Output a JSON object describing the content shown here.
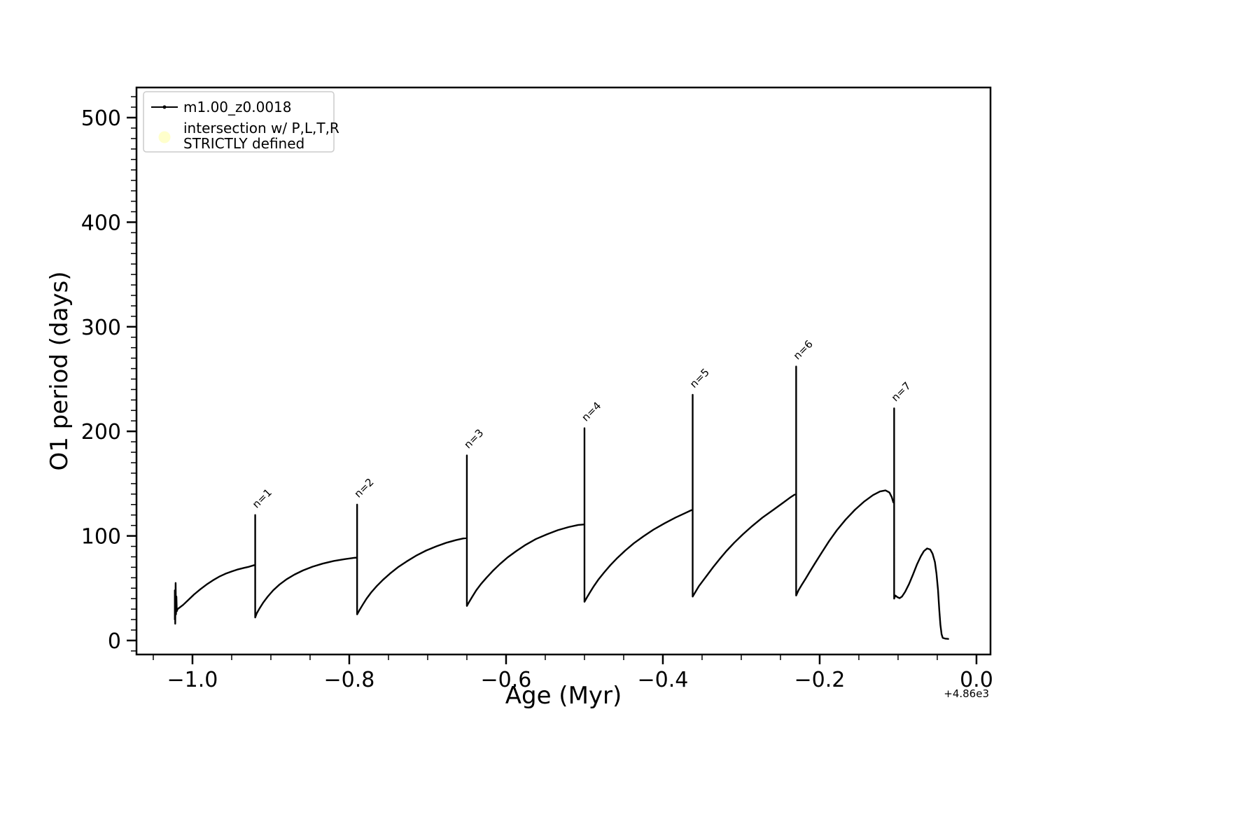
{
  "chart_data": {
    "type": "line",
    "title": "",
    "xlabel": "Age (Myr)",
    "ylabel": "O1 period (days)",
    "x_offset_text": "+4.86e3",
    "xlim": [
      -1.0714,
      0.0179
    ],
    "ylim": [
      -13.4,
      528.8
    ],
    "grid": false,
    "x_major_ticks": [
      -1.0,
      -0.8,
      -0.6,
      -0.4,
      -0.2,
      0.0
    ],
    "x_tick_labels": [
      "−1.0",
      "−0.8",
      "−0.6",
      "−0.4",
      "−0.2",
      "0.0"
    ],
    "x_minor_step": 0.05,
    "y_major_ticks": [
      0,
      100,
      200,
      300,
      400,
      500
    ],
    "y_tick_labels": [
      "0",
      "100",
      "200",
      "300",
      "400",
      "500"
    ],
    "y_minor_step": 10,
    "legend": {
      "position": "upper left",
      "entries": [
        {
          "label": "m1.00_z0.0018",
          "marker": "line-dot",
          "color": "#000000"
        },
        {
          "label_lines": [
            "intersection w/ P,L,T,R",
            "STRICTLY defined"
          ],
          "marker": "circle",
          "color": "#ffffcc"
        }
      ]
    },
    "annotations": [
      {
        "text": "n=1",
        "x": -0.918,
        "y": 126,
        "rotation": -45
      },
      {
        "text": "n=2",
        "x": -0.788,
        "y": 136,
        "rotation": -45
      },
      {
        "text": "n=3",
        "x": -0.648,
        "y": 183,
        "rotation": -45
      },
      {
        "text": "n=4",
        "x": -0.498,
        "y": 209,
        "rotation": -45
      },
      {
        "text": "n=5",
        "x": -0.36,
        "y": 241,
        "rotation": -45
      },
      {
        "text": "n=6",
        "x": -0.228,
        "y": 268,
        "rotation": -45
      },
      {
        "text": "n=7",
        "x": -0.103,
        "y": 228,
        "rotation": -45
      }
    ],
    "series": [
      {
        "name": "m1.00_z0.0018",
        "color": "#000000",
        "linewidth": 2.4,
        "points": [
          [
            -1.0225,
            20
          ],
          [
            -1.0225,
            48
          ],
          [
            -1.022,
            16
          ],
          [
            -1.0215,
            55
          ],
          [
            -1.021,
            25
          ],
          [
            -1.0205,
            42
          ],
          [
            -1.02,
            28
          ],
          [
            -1.019,
            30
          ],
          [
            -1.012,
            34
          ],
          [
            -1.005,
            39
          ],
          [
            -0.998,
            44
          ],
          [
            -0.99,
            49
          ],
          [
            -0.982,
            53.5
          ],
          [
            -0.974,
            57.5
          ],
          [
            -0.966,
            61
          ],
          [
            -0.958,
            63.8
          ],
          [
            -0.95,
            66
          ],
          [
            -0.942,
            68
          ],
          [
            -0.934,
            69.5
          ],
          [
            -0.928,
            70.5
          ],
          [
            -0.9215,
            72
          ],
          [
            -0.92,
            72
          ],
          [
            -0.92,
            120
          ],
          [
            -0.92,
            22
          ],
          [
            -0.918,
            26
          ],
          [
            -0.915,
            30
          ],
          [
            -0.91,
            36
          ],
          [
            -0.904,
            42
          ],
          [
            -0.897,
            48
          ],
          [
            -0.889,
            53.5
          ],
          [
            -0.88,
            58.5
          ],
          [
            -0.87,
            63
          ],
          [
            -0.859,
            67
          ],
          [
            -0.847,
            70.5
          ],
          [
            -0.834,
            73.5
          ],
          [
            -0.82,
            76
          ],
          [
            -0.806,
            77.8
          ],
          [
            -0.794,
            79
          ],
          [
            -0.79,
            79.3
          ],
          [
            -0.79,
            130
          ],
          [
            -0.79,
            25
          ],
          [
            -0.787,
            29
          ],
          [
            -0.783,
            34
          ],
          [
            -0.778,
            40
          ],
          [
            -0.772,
            46
          ],
          [
            -0.765,
            52
          ],
          [
            -0.757,
            58
          ],
          [
            -0.748,
            64
          ],
          [
            -0.738,
            70
          ],
          [
            -0.727,
            75.5
          ],
          [
            -0.715,
            81
          ],
          [
            -0.702,
            86
          ],
          [
            -0.689,
            90
          ],
          [
            -0.676,
            93.5
          ],
          [
            -0.664,
            96
          ],
          [
            -0.655,
            97.5
          ],
          [
            -0.65,
            98
          ],
          [
            -0.65,
            177
          ],
          [
            -0.65,
            33
          ],
          [
            -0.647,
            37
          ],
          [
            -0.643,
            42
          ],
          [
            -0.638,
            48
          ],
          [
            -0.632,
            54
          ],
          [
            -0.625,
            60
          ],
          [
            -0.617,
            66.5
          ],
          [
            -0.608,
            73
          ],
          [
            -0.598,
            79.5
          ],
          [
            -0.587,
            85.5
          ],
          [
            -0.575,
            91.5
          ],
          [
            -0.562,
            97
          ],
          [
            -0.548,
            101.5
          ],
          [
            -0.534,
            105.5
          ],
          [
            -0.52,
            108.5
          ],
          [
            -0.508,
            110.5
          ],
          [
            -0.5,
            111
          ],
          [
            -0.5,
            203
          ],
          [
            -0.5,
            37
          ],
          [
            -0.497,
            41
          ],
          [
            -0.493,
            46
          ],
          [
            -0.488,
            52
          ],
          [
            -0.482,
            58.5
          ],
          [
            -0.475,
            65
          ],
          [
            -0.467,
            72
          ],
          [
            -0.458,
            79
          ],
          [
            -0.448,
            86
          ],
          [
            -0.437,
            93
          ],
          [
            -0.425,
            99.5
          ],
          [
            -0.412,
            106
          ],
          [
            -0.398,
            112
          ],
          [
            -0.384,
            117.5
          ],
          [
            -0.371,
            122
          ],
          [
            -0.364,
            124.5
          ],
          [
            -0.362,
            125
          ],
          [
            -0.362,
            235
          ],
          [
            -0.362,
            42
          ],
          [
            -0.358,
            47
          ],
          [
            -0.354,
            52
          ],
          [
            -0.349,
            57
          ],
          [
            -0.343,
            63
          ],
          [
            -0.336,
            70
          ],
          [
            -0.328,
            77.5
          ],
          [
            -0.319,
            85.5
          ],
          [
            -0.309,
            93.5
          ],
          [
            -0.298,
            101.5
          ],
          [
            -0.286,
            109.5
          ],
          [
            -0.273,
            117.5
          ],
          [
            -0.259,
            125
          ],
          [
            -0.247,
            131.5
          ],
          [
            -0.238,
            136.5
          ],
          [
            -0.232,
            139.5
          ],
          [
            -0.23,
            140
          ],
          [
            -0.23,
            262
          ],
          [
            -0.23,
            43
          ],
          [
            -0.227,
            48
          ],
          [
            -0.223,
            53
          ],
          [
            -0.218,
            59
          ],
          [
            -0.212,
            66.5
          ],
          [
            -0.205,
            75
          ],
          [
            -0.197,
            84.5
          ],
          [
            -0.188,
            95
          ],
          [
            -0.178,
            105.5
          ],
          [
            -0.167,
            115.5
          ],
          [
            -0.155,
            125
          ],
          [
            -0.143,
            133
          ],
          [
            -0.132,
            139
          ],
          [
            -0.123,
            142.5
          ],
          [
            -0.116,
            143.5
          ],
          [
            -0.111,
            141.5
          ],
          [
            -0.108,
            137
          ],
          [
            -0.106,
            132
          ],
          [
            -0.105,
            132
          ],
          [
            -0.105,
            222
          ],
          [
            -0.105,
            40
          ],
          [
            -0.1035,
            43
          ],
          [
            -0.101,
            41.5
          ],
          [
            -0.098,
            40.5
          ],
          [
            -0.095,
            42
          ],
          [
            -0.091,
            46.5
          ],
          [
            -0.086,
            54
          ],
          [
            -0.081,
            63
          ],
          [
            -0.076,
            72.5
          ],
          [
            -0.071,
            80.5
          ],
          [
            -0.067,
            85.5
          ],
          [
            -0.063,
            88
          ],
          [
            -0.059,
            87
          ],
          [
            -0.056,
            83
          ],
          [
            -0.053,
            75
          ],
          [
            -0.051,
            64
          ],
          [
            -0.049,
            48
          ],
          [
            -0.0475,
            30
          ],
          [
            -0.046,
            15
          ],
          [
            -0.0445,
            6
          ],
          [
            -0.043,
            2.5
          ],
          [
            -0.04,
            1.8
          ],
          [
            -0.036,
            1.5
          ]
        ]
      }
    ]
  }
}
